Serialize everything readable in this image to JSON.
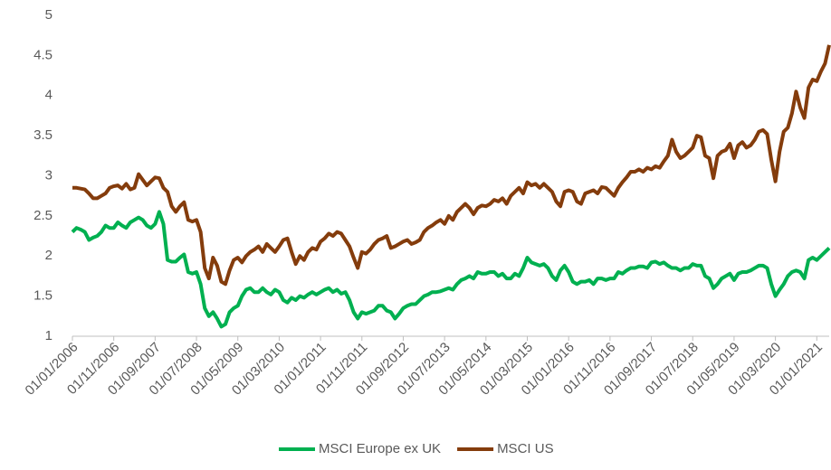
{
  "chart_data": {
    "type": "line",
    "categories": [
      "01/01/2006",
      null,
      null,
      null,
      null,
      null,
      null,
      null,
      null,
      null,
      "01/11/2006",
      null,
      null,
      null,
      null,
      null,
      null,
      null,
      null,
      null,
      "01/09/2007",
      null,
      null,
      null,
      null,
      null,
      null,
      null,
      null,
      null,
      "01/07/2008",
      null,
      null,
      null,
      null,
      null,
      null,
      null,
      null,
      null,
      "01/05/2009",
      null,
      null,
      null,
      null,
      null,
      null,
      null,
      null,
      null,
      "01/03/2010",
      null,
      null,
      null,
      null,
      null,
      null,
      null,
      null,
      null,
      "01/01/2011",
      null,
      null,
      null,
      null,
      null,
      null,
      null,
      null,
      null,
      "01/11/2011",
      null,
      null,
      null,
      null,
      null,
      null,
      null,
      null,
      null,
      "01/09/2012",
      null,
      null,
      null,
      null,
      null,
      null,
      null,
      null,
      null,
      "01/07/2013",
      null,
      null,
      null,
      null,
      null,
      null,
      null,
      null,
      null,
      "01/05/2014",
      null,
      null,
      null,
      null,
      null,
      null,
      null,
      null,
      null,
      "01/03/2015",
      null,
      null,
      null,
      null,
      null,
      null,
      null,
      null,
      null,
      "01/01/2016",
      null,
      null,
      null,
      null,
      null,
      null,
      null,
      null,
      null,
      "01/11/2016",
      null,
      null,
      null,
      null,
      null,
      null,
      null,
      null,
      null,
      "01/09/2017",
      null,
      null,
      null,
      null,
      null,
      null,
      null,
      null,
      null,
      "01/07/2018",
      null,
      null,
      null,
      null,
      null,
      null,
      null,
      null,
      null,
      "01/05/2019",
      null,
      null,
      null,
      null,
      null,
      null,
      null,
      null,
      null,
      "01/03/2020",
      null,
      null,
      null,
      null,
      null,
      null,
      null,
      null,
      null,
      "01/01/2021",
      null,
      null,
      null
    ],
    "series": [
      {
        "name": "MSCI Europe ex UK",
        "color": "#00b050",
        "values": [
          2.3,
          2.35,
          2.33,
          2.3,
          2.2,
          2.23,
          2.25,
          2.3,
          2.38,
          2.35,
          2.35,
          2.42,
          2.38,
          2.35,
          2.42,
          2.45,
          2.48,
          2.45,
          2.38,
          2.35,
          2.4,
          2.55,
          2.4,
          1.95,
          1.93,
          1.93,
          1.98,
          2.02,
          1.8,
          1.78,
          1.8,
          1.65,
          1.35,
          1.25,
          1.3,
          1.22,
          1.12,
          1.15,
          1.3,
          1.35,
          1.38,
          1.5,
          1.58,
          1.6,
          1.55,
          1.55,
          1.6,
          1.55,
          1.52,
          1.58,
          1.55,
          1.45,
          1.42,
          1.48,
          1.45,
          1.5,
          1.48,
          1.52,
          1.55,
          1.52,
          1.55,
          1.58,
          1.6,
          1.55,
          1.58,
          1.53,
          1.55,
          1.45,
          1.3,
          1.22,
          1.3,
          1.28,
          1.3,
          1.32,
          1.38,
          1.38,
          1.32,
          1.3,
          1.22,
          1.28,
          1.35,
          1.38,
          1.4,
          1.4,
          1.45,
          1.5,
          1.52,
          1.55,
          1.55,
          1.56,
          1.58,
          1.6,
          1.58,
          1.65,
          1.7,
          1.72,
          1.75,
          1.72,
          1.8,
          1.78,
          1.78,
          1.8,
          1.8,
          1.75,
          1.78,
          1.72,
          1.72,
          1.78,
          1.75,
          1.85,
          1.98,
          1.92,
          1.9,
          1.88,
          1.9,
          1.85,
          1.75,
          1.7,
          1.82,
          1.88,
          1.8,
          1.68,
          1.65,
          1.68,
          1.68,
          1.7,
          1.65,
          1.72,
          1.72,
          1.7,
          1.72,
          1.72,
          1.8,
          1.78,
          1.82,
          1.85,
          1.85,
          1.87,
          1.87,
          1.85,
          1.92,
          1.93,
          1.9,
          1.92,
          1.88,
          1.85,
          1.85,
          1.82,
          1.85,
          1.85,
          1.9,
          1.88,
          1.88,
          1.75,
          1.72,
          1.6,
          1.65,
          1.72,
          1.75,
          1.78,
          1.7,
          1.78,
          1.8,
          1.8,
          1.82,
          1.85,
          1.88,
          1.88,
          1.85,
          1.65,
          1.5,
          1.58,
          1.65,
          1.75,
          1.8,
          1.82,
          1.8,
          1.72,
          1.95,
          1.98,
          1.95,
          2.0,
          2.05,
          2.1
        ]
      },
      {
        "name": "MSCI US",
        "color": "#843c0c",
        "values": [
          2.85,
          2.85,
          2.84,
          2.83,
          2.78,
          2.72,
          2.72,
          2.75,
          2.78,
          2.85,
          2.87,
          2.88,
          2.84,
          2.9,
          2.83,
          2.85,
          3.02,
          2.95,
          2.88,
          2.93,
          2.98,
          2.97,
          2.85,
          2.8,
          2.62,
          2.55,
          2.62,
          2.67,
          2.45,
          2.43,
          2.45,
          2.3,
          1.85,
          1.72,
          1.98,
          1.88,
          1.68,
          1.65,
          1.82,
          1.95,
          1.98,
          1.92,
          2.0,
          2.05,
          2.08,
          2.12,
          2.05,
          2.15,
          2.1,
          2.05,
          2.12,
          2.2,
          2.22,
          2.05,
          1.9,
          2.0,
          1.95,
          2.05,
          2.1,
          2.08,
          2.18,
          2.22,
          2.28,
          2.25,
          2.3,
          2.28,
          2.2,
          2.12,
          1.98,
          1.85,
          2.05,
          2.03,
          2.08,
          2.15,
          2.2,
          2.22,
          2.25,
          2.1,
          2.12,
          2.15,
          2.18,
          2.2,
          2.15,
          2.17,
          2.2,
          2.3,
          2.35,
          2.38,
          2.42,
          2.45,
          2.4,
          2.5,
          2.45,
          2.55,
          2.6,
          2.65,
          2.6,
          2.52,
          2.6,
          2.63,
          2.62,
          2.65,
          2.7,
          2.68,
          2.72,
          2.65,
          2.75,
          2.8,
          2.85,
          2.78,
          2.92,
          2.88,
          2.9,
          2.85,
          2.9,
          2.85,
          2.8,
          2.68,
          2.62,
          2.8,
          2.82,
          2.8,
          2.68,
          2.65,
          2.78,
          2.8,
          2.82,
          2.78,
          2.86,
          2.85,
          2.8,
          2.75,
          2.85,
          2.92,
          2.98,
          3.05,
          3.05,
          3.08,
          3.05,
          3.1,
          3.08,
          3.12,
          3.1,
          3.18,
          3.25,
          3.45,
          3.3,
          3.22,
          3.25,
          3.3,
          3.35,
          3.5,
          3.48,
          3.25,
          3.22,
          2.97,
          3.25,
          3.3,
          3.32,
          3.4,
          3.22,
          3.38,
          3.42,
          3.35,
          3.38,
          3.45,
          3.55,
          3.57,
          3.52,
          3.2,
          2.93,
          3.3,
          3.55,
          3.6,
          3.78,
          4.05,
          3.85,
          3.72,
          4.1,
          4.2,
          4.18,
          4.3,
          4.4,
          4.63
        ]
      }
    ],
    "ylim": [
      1,
      5
    ],
    "yticks": [
      1,
      1.5,
      2,
      2.5,
      3,
      3.5,
      4,
      4.5,
      5
    ],
    "grid": false,
    "legend": "bottom"
  }
}
